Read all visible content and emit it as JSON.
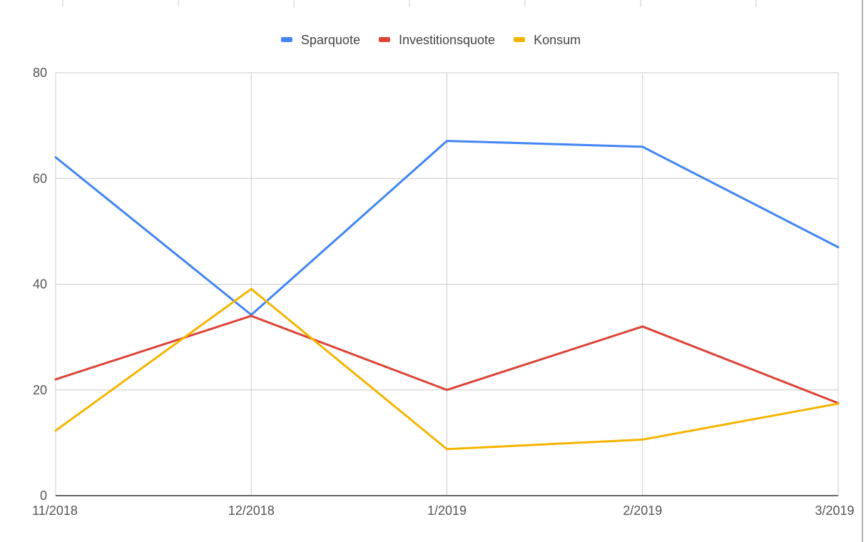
{
  "chart_data": {
    "type": "line",
    "categories": [
      "11/2018",
      "12/2018",
      "1/2019",
      "2/2019",
      "3/2019"
    ],
    "series": [
      {
        "name": "Sparquote",
        "color": "#4285f4",
        "values": [
          64,
          34.2,
          67.1,
          66,
          47
        ]
      },
      {
        "name": "Investitionsquote",
        "color": "#db4437",
        "values": [
          22,
          34,
          20,
          32,
          17.5
        ]
      },
      {
        "name": "Konsum",
        "color": "#f4b400",
        "values": [
          12.3,
          39.1,
          8.8,
          10.6,
          17.4
        ]
      }
    ],
    "ylim": [
      0,
      80
    ],
    "yticks": [
      0,
      20,
      40,
      60,
      80
    ],
    "grid": true,
    "legend": "top-center",
    "title": "",
    "xlabel": "",
    "ylabel": ""
  }
}
